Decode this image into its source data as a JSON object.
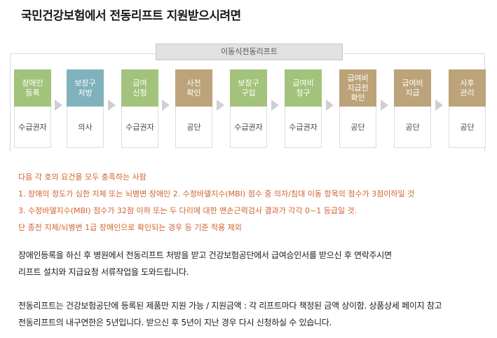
{
  "title": "국민건강보험에서 전동리프트 지원받으시려면",
  "process": {
    "caption": "이동식전동리프트",
    "steps": [
      {
        "label": "장애인\n등록",
        "actor": "수급권자",
        "color": "#a3c37c"
      },
      {
        "label": "보장구\n처방",
        "actor": "의사",
        "color": "#80b2bd"
      },
      {
        "label": "급여\n신청",
        "actor": "수급권자",
        "color": "#a3c37c"
      },
      {
        "label": "사전\n확인",
        "actor": "공단",
        "color": "#bda37a"
      },
      {
        "label": "보장구\n구입",
        "actor": "수급권자",
        "color": "#a3c37c"
      },
      {
        "label": "급여비\n청구",
        "actor": "수급권자",
        "color": "#a3c37c"
      },
      {
        "label": "급여비\n지급전\n확인",
        "actor": "공단",
        "color": "#bda37a"
      },
      {
        "label": "급여비\n지급",
        "actor": "공단",
        "color": "#bda37a"
      },
      {
        "label": "사후\n관리",
        "actor": "공단",
        "color": "#bda37a"
      }
    ]
  },
  "requirements": [
    "다음 각 호의 요건을 모두 충족하는 사람",
    "1. 장애의 정도가 심한 지체 또는 뇌병변 장애인     2. 수정바델지수(MBI) 점수 중 의자/침대   이동 항목의 점수가 3점이하일 것",
    "3. 수정바델지수(MBI) 점수가 32점 이하 또는 두 다리에 대한 맨손근력검사 결과가 각각 0~1 등급일 것.",
    "단 종전 지체/뇌병변 1급 장애인으로 확인되는 경우 등 기준 적용 제외"
  ],
  "paragraphs": [
    "장애인등록을 하신 후 병원에서 전동리프트 처방을 받고 건강보험공단에서 급여승인서를 받으신 후 연락주시면",
    "리프트 설치와 지급요청 서류작업을 도와드립니다.",
    "전동리프트는 건강보험공단에 등록된 제품만 지원 가능 / 지원금액 : 각 리프트마다 책정된 금액 상이함. 상품상세 페이지 참고",
    "전동리프트의 내구연한은 5년입니다. 받으신 후 5년이 지난 경우 다시 신청하실 수 있습니다."
  ]
}
